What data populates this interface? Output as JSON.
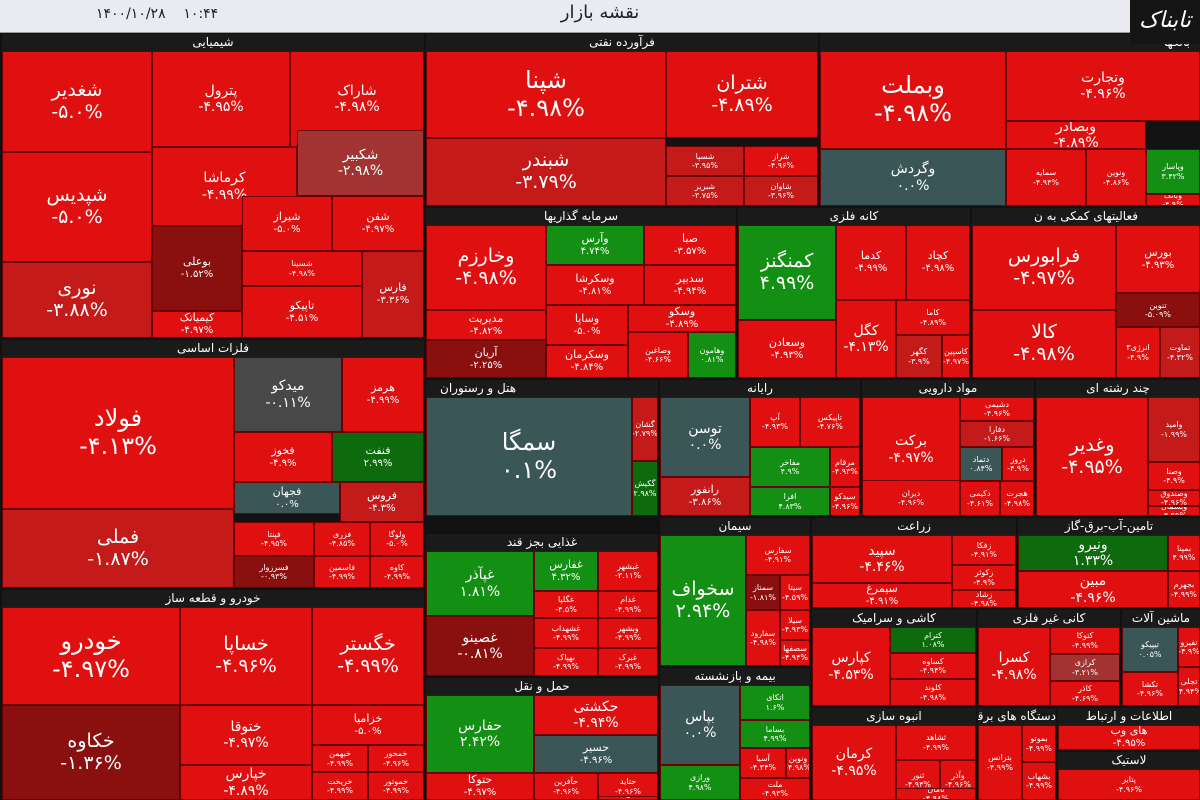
{
  "header": {
    "title": "نقشه بازار",
    "date": "۱۴۰۰/۱۰/۲۸",
    "time": "۱۰:۴۴",
    "logo": "تابناک"
  },
  "colors": {
    "positive": "#139013",
    "negative": "#e01010",
    "neutral": "#3a5657"
  },
  "sections": [
    {
      "name": "شیمیایی",
      "tiles": [
        {
          "n": "شغدیر",
          "p": "-۵.۰%"
        },
        {
          "n": "پترول",
          "p": "-۴.۹۵%"
        },
        {
          "n": "شاراک",
          "p": "-۴.۹۸%"
        },
        {
          "n": "کرماشا",
          "p": "-۴.۹۹%"
        },
        {
          "n": "شکبیر",
          "p": "-۲.۹۸%"
        },
        {
          "n": "شپدیس",
          "p": "-۵.۰%"
        },
        {
          "n": "بوعلی",
          "p": "-۱.۵۲%"
        },
        {
          "n": "شیراز",
          "p": "-۵.۰%"
        },
        {
          "n": "شفن",
          "p": "-۴.۹۷%"
        },
        {
          "n": "شسینا",
          "p": "-۴.۹۸%"
        },
        {
          "n": "نوری",
          "p": "-۳.۸۸%"
        },
        {
          "n": "کیمیاتک",
          "p": "-۴.۹۷%"
        },
        {
          "n": "تاپیکو",
          "p": "-۴.۵۱%"
        },
        {
          "n": "فارس",
          "p": "-۳.۳۶%"
        }
      ]
    },
    {
      "name": "فرآورده نفتی",
      "tiles": [
        {
          "n": "شپنا",
          "p": "-۴.۹۸%"
        },
        {
          "n": "شتران",
          "p": "-۴.۸۹%"
        },
        {
          "n": "شبندر",
          "p": "-۳.۷۹%"
        },
        {
          "n": "شسپا",
          "p": "-۳.۹۵%"
        },
        {
          "n": "شراز",
          "p": "-۴.۹۶%"
        },
        {
          "n": "شبریز",
          "p": "-۳.۷۵%"
        },
        {
          "n": "شاوان",
          "p": "-۳.۹۶%"
        }
      ]
    },
    {
      "name": "بانکها",
      "tiles": [
        {
          "n": "وبملت",
          "p": "-۴.۹۸%"
        },
        {
          "n": "وتجارت",
          "p": "-۴.۹۶%"
        },
        {
          "n": "وبصادر",
          "p": "-۴.۸۹%"
        },
        {
          "n": "وگردش",
          "p": "۰.۰%"
        },
        {
          "n": "سمایه",
          "p": "-۴.۹۴%"
        },
        {
          "n": "ونوین",
          "p": "-۴.۸۶%"
        },
        {
          "n": "وپاسار",
          "p": "۳.۴۲%"
        },
        {
          "n": "وبانک",
          "p": "-۴.۹%"
        }
      ]
    },
    {
      "name": "سرمایه گذاریها",
      "tiles": [
        {
          "n": "وخارزم",
          "p": "-۴.۹۸%"
        },
        {
          "n": "وآرس",
          "p": "۴.۷۴%"
        },
        {
          "n": "صبا",
          "p": "-۳.۵۷%"
        },
        {
          "n": "وسکرشا",
          "p": "-۴.۸۱%"
        },
        {
          "n": "سدبیر",
          "p": "-۴.۹۴%"
        },
        {
          "n": "مدیریت",
          "p": "-۴.۸۲%"
        },
        {
          "n": "وساپا",
          "p": "-۵.۰%"
        },
        {
          "n": "وسکو",
          "p": "-۴.۸۹%"
        },
        {
          "n": "آریان",
          "p": "-۲.۲۵%"
        },
        {
          "n": "وسکرمان",
          "p": "-۴.۸۴%"
        },
        {
          "n": "وصاغین",
          "p": "-۴.۶۶%"
        },
        {
          "n": "وهامون",
          "p": "۰.۸۱%"
        }
      ]
    },
    {
      "name": "کانه فلزی",
      "tiles": [
        {
          "n": "کمنگنز",
          "p": "۴.۹۹%"
        },
        {
          "n": "کدما",
          "p": "-۴.۹۹%"
        },
        {
          "n": "کچاد",
          "p": "-۴.۹۸%"
        },
        {
          "n": "کاما",
          "p": "-۴.۸۹%"
        },
        {
          "n": "وسعادن",
          "p": "-۴.۹۳%"
        },
        {
          "n": "کگل",
          "p": "-۴.۱۳%"
        },
        {
          "n": "کگهر",
          "p": "-۳.۹%"
        },
        {
          "n": "کاسپین",
          "p": "-۴.۹۷%"
        }
      ]
    },
    {
      "name": "فعالیتهای کمکی به ن",
      "tiles": [
        {
          "n": "فرابورس",
          "p": "-۴.۹۷%"
        },
        {
          "n": "بورس",
          "p": "-۴.۹۳%"
        },
        {
          "n": "کالا",
          "p": "-۴.۹۸%"
        },
        {
          "n": "تنوین",
          "p": "-۵.۰۹%"
        },
        {
          "n": "انرژی۳",
          "p": "-۴.۹%"
        },
        {
          "n": "تماوت",
          "p": "-۴.۳۲%"
        }
      ]
    },
    {
      "name": "فلزات اساسی",
      "tiles": [
        {
          "n": "فولاد",
          "p": "-۴.۱۳%"
        },
        {
          "n": "میدکو",
          "p": "-۰.۱۱%"
        },
        {
          "n": "هرمز",
          "p": "-۴.۹۹%"
        },
        {
          "n": "فخوز",
          "p": "-۴.۹%"
        },
        {
          "n": "فنفت",
          "p": "۲.۹۹%"
        },
        {
          "n": "فجهان",
          "p": "۰.۰%"
        },
        {
          "n": "فروس",
          "p": "-۴.۳%"
        },
        {
          "n": "فملی",
          "p": "-۱.۸۷%"
        },
        {
          "n": "فپنتا",
          "p": "-۴.۹۵%"
        },
        {
          "n": "فزری",
          "p": "-۴.۸۵%"
        },
        {
          "n": "ولوگا",
          "p": "-۵.۰%"
        },
        {
          "n": "فسرزوار",
          "p": "-۰.۹۳%"
        },
        {
          "n": "فاسمین",
          "p": "-۴.۹۹%"
        },
        {
          "n": "کاوه",
          "p": "-۴.۹۹%"
        }
      ]
    },
    {
      "name": "هتل و رستوران",
      "tiles": [
        {
          "n": "سمگا",
          "p": "۰.۱%"
        },
        {
          "n": "گشان",
          "p": "-۲.۷۹%"
        },
        {
          "n": "گکیش",
          "p": "۲.۹۸%"
        }
      ]
    },
    {
      "name": "رایانه",
      "tiles": [
        {
          "n": "توسن",
          "p": "۰.۰%"
        },
        {
          "n": "آپ",
          "p": "-۴.۹۳%"
        },
        {
          "n": "تاپیکس",
          "p": "-۴.۷۶%"
        },
        {
          "n": "رانفور",
          "p": "-۳.۸۶%"
        },
        {
          "n": "مفاخر",
          "p": "۴.۹%"
        },
        {
          "n": "مرقام",
          "p": "-۴.۹۳%"
        },
        {
          "n": "افرا",
          "p": "۴.۸۳%"
        },
        {
          "n": "سیدکو",
          "p": "-۴.۹۶%"
        }
      ]
    },
    {
      "name": "مواد دارویی",
      "tiles": [
        {
          "n": "برکت",
          "p": "-۴.۹۷%"
        },
        {
          "n": "دشیمی",
          "p": "-۴.۹۶%"
        },
        {
          "n": "دفارا",
          "p": "-۱.۶۶%"
        },
        {
          "n": "دتماد",
          "p": "۰.۸۴%"
        },
        {
          "n": "دروز",
          "p": "-۴.۹%"
        },
        {
          "n": "دیران",
          "p": "-۴.۹۶%"
        },
        {
          "n": "دکیمی",
          "p": "-۴.۶۱%"
        },
        {
          "n": "هجرت",
          "p": "-۴.۹۸%"
        }
      ]
    },
    {
      "name": "چند رشته ای",
      "tiles": [
        {
          "n": "وغدیر",
          "p": "-۴.۹۵%"
        },
        {
          "n": "وامید",
          "p": "-۱.۹۹%"
        },
        {
          "n": "وصنا",
          "p": "-۴.۹%"
        },
        {
          "n": "وصندوق",
          "p": "-۴.۹۶%"
        },
        {
          "n": "وبشمال",
          "p": "-۴.۹۹%"
        }
      ]
    },
    {
      "name": "غذایی بجز قند",
      "tiles": [
        {
          "n": "غپآذر",
          "p": "۱.۸۱%"
        },
        {
          "n": "غفارس",
          "p": "۴.۳۲%"
        },
        {
          "n": "غبشهر",
          "p": "-۳.۱۱%"
        },
        {
          "n": "غصینو",
          "p": "-۰.۸۱%"
        },
        {
          "n": "غگلپا",
          "p": "-۴.۵%"
        },
        {
          "n": "غدام",
          "p": "-۴.۹۹%"
        },
        {
          "n": "غشهداب",
          "p": "-۴.۹۹%"
        },
        {
          "n": "وبشهر",
          "p": "-۴.۹۹%"
        },
        {
          "n": "بهپاک",
          "p": "-۴.۹۹%"
        },
        {
          "n": "غبرک",
          "p": "-۴.۹۹%"
        }
      ]
    },
    {
      "name": "سیمان",
      "tiles": [
        {
          "n": "سخواف",
          "p": "۲.۹۴%"
        },
        {
          "n": "سفارس",
          "p": "-۴.۹۱%"
        },
        {
          "n": "سمتاز",
          "p": "-۱.۸۱%"
        },
        {
          "n": "سیتا",
          "p": "-۴.۵۹%"
        },
        {
          "n": "سفارود",
          "p": "-۴.۹۸%"
        },
        {
          "n": "سیلا",
          "p": "-۴.۹۳%"
        },
        {
          "n": "سصفها",
          "p": "-۴.۹۴%"
        }
      ]
    },
    {
      "name": "زراعت",
      "tiles": [
        {
          "n": "سپید",
          "p": "-۴.۴۶%"
        },
        {
          "n": "زفکا",
          "p": "-۴.۹۱%"
        },
        {
          "n": "سیمرغ",
          "p": "-۴.۹۱%"
        },
        {
          "n": "زکوثر",
          "p": "-۴.۹%"
        },
        {
          "n": "زشاد",
          "p": "-۴.۹۸%"
        }
      ]
    },
    {
      "name": "تامین-آب-برق-گاز",
      "tiles": [
        {
          "n": "ونیرو",
          "p": "۱.۳۳%"
        },
        {
          "n": "بمپنا",
          "p": "۴.۹۹%"
        },
        {
          "n": "مبین",
          "p": "-۴.۹۶%"
        },
        {
          "n": "بجهرم",
          "p": "-۴.۹۹%"
        }
      ]
    },
    {
      "name": "خودرو و قطعه ساز",
      "tiles": [
        {
          "n": "خودرو",
          "p": "-۴.۹۷%"
        },
        {
          "n": "خساپا",
          "p": "-۴.۹۶%"
        },
        {
          "n": "خگستر",
          "p": "-۴.۹۹%"
        },
        {
          "n": "ختوقا",
          "p": "-۴.۹۷%"
        },
        {
          "n": "خزامیا",
          "p": "-۵.۰%"
        },
        {
          "n": "خکاوه",
          "p": "-۱.۳۶%"
        },
        {
          "n": "خپارس",
          "p": "-۴.۸۹%"
        },
        {
          "n": "خبهمن",
          "p": "-۴.۹۹%"
        },
        {
          "n": "خمحور",
          "p": "-۴.۹۶%"
        },
        {
          "n": "خریخت",
          "p": "-۴.۹۹%"
        },
        {
          "n": "خموتور",
          "p": "-۴.۹۹%"
        },
        {
          "n": "خچرخش",
          "p": "-۴.۹۸%"
        },
        {
          "n": "خفنر",
          "p": "-۴.۹۶%"
        },
        {
          "n": "خاور",
          "p": "-۴.۹۹%"
        },
        {
          "n": "خرنگ",
          "p": "-۴.۹۹%"
        },
        {
          "n": "خکار",
          "p": "-۴.۹۳%"
        }
      ]
    },
    {
      "name": "حمل و نقل",
      "tiles": [
        {
          "n": "حفارس",
          "p": "۲.۴۲%"
        },
        {
          "n": "حکشتی",
          "p": "-۴.۹۴%"
        },
        {
          "n": "حسیر",
          "p": "-۴.۹۶%"
        },
        {
          "n": "حتوکا",
          "p": "-۴.۹۷%"
        },
        {
          "n": "حآفرین",
          "p": "-۴.۹۶%"
        },
        {
          "n": "حتاید",
          "p": "-۴.۹۶%"
        },
        {
          "n": "حریل",
          "p": "-۴.۹۵%"
        }
      ]
    },
    {
      "name": "بیمه و بازنشسته",
      "tiles": [
        {
          "n": "بپاس",
          "p": "۰.۰%"
        },
        {
          "n": "اتکای",
          "p": "۱.۶%"
        },
        {
          "n": "بساما",
          "p": "۴.۹۹%"
        },
        {
          "n": "ورازی",
          "p": "۴.۹۸%"
        },
        {
          "n": "آسیا",
          "p": "-۴.۳۴%"
        },
        {
          "n": "ونوین",
          "p": "-۴.۹۸%"
        },
        {
          "n": "ملت",
          "p": "-۴.۹۳%"
        }
      ]
    },
    {
      "name": "کاشی و سرامیک",
      "tiles": [
        {
          "n": "کپارس",
          "p": "-۴.۵۳%"
        },
        {
          "n": "کترام",
          "p": "۱.۰۸%"
        },
        {
          "n": "کساوه",
          "p": "-۴.۹۴%"
        },
        {
          "n": "کلوند",
          "p": "-۴.۹۸%"
        },
        {
          "n": "کسعدی",
          "p": "-۴.۹۸%"
        }
      ]
    },
    {
      "name": "کانی غیر فلزی",
      "tiles": [
        {
          "n": "کسرا",
          "p": "-۴.۹۸%"
        },
        {
          "n": "کتوکا",
          "p": "-۴.۹۹%"
        },
        {
          "n": "کرازی",
          "p": "-۳.۲۱%"
        },
        {
          "n": "کاذر",
          "p": "-۴.۶۹%"
        }
      ]
    },
    {
      "name": "ماشین آلات",
      "tiles": [
        {
          "n": "تیپیکو",
          "p": "۰.۰۵%"
        },
        {
          "n": "تکشا",
          "p": "-۴.۹۶%"
        },
        {
          "n": "تفیرو",
          "p": "-۴.۹%"
        },
        {
          "n": "تجلی",
          "p": "-۴.۹۴%"
        }
      ]
    },
    {
      "name": "انبوه سازی",
      "tiles": [
        {
          "n": "کرمان",
          "p": "-۴.۹۵%"
        },
        {
          "n": "ثشاهد",
          "p": "-۴.۹۹%"
        },
        {
          "n": "ثنور",
          "p": "-۴.۹۴%"
        },
        {
          "n": "وآذر",
          "p": "-۴.۹۶%"
        },
        {
          "n": "ثامان",
          "p": "-۴.۹۸%"
        }
      ]
    },
    {
      "name": "دستگاه های برقی",
      "tiles": [
        {
          "n": "بترانس",
          "p": "-۴.۹۹%"
        },
        {
          "n": "بموتو",
          "p": "-۴.۹۹%"
        },
        {
          "n": "بشهاب",
          "p": "-۴.۹۹%"
        }
      ]
    },
    {
      "name": "اطلاعات و ارتباط",
      "tiles": [
        {
          "n": "های وب",
          "p": "-۴.۹۵%"
        }
      ]
    },
    {
      "name": "لاستیک",
      "tiles": [
        {
          "n": "پتایر",
          "p": "-۴.۹۶%"
        }
      ]
    }
  ]
}
